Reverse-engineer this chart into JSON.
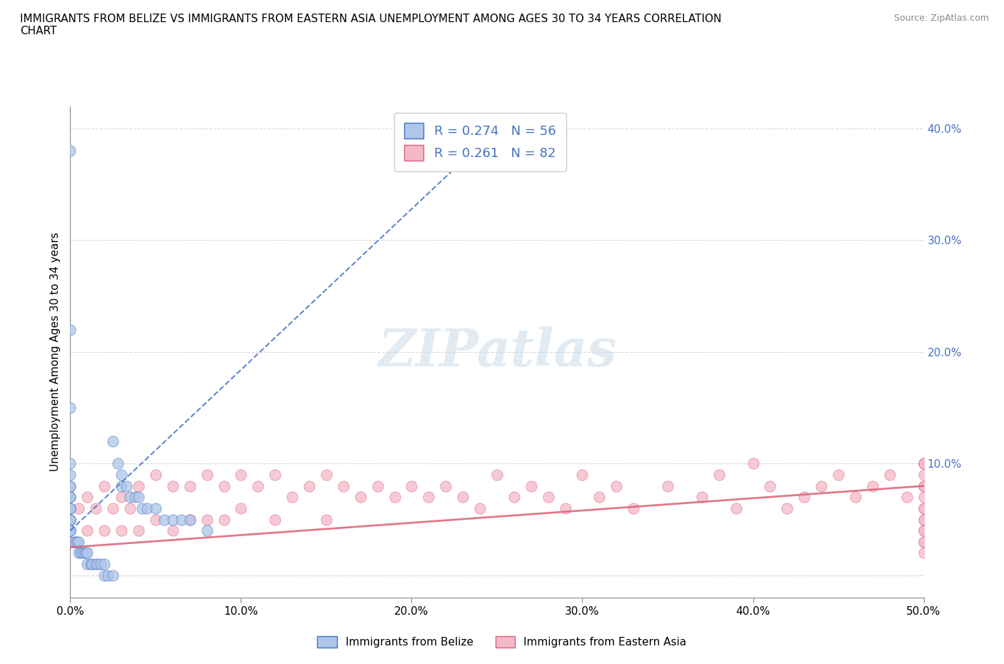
{
  "title": "IMMIGRANTS FROM BELIZE VS IMMIGRANTS FROM EASTERN ASIA UNEMPLOYMENT AMONG AGES 30 TO 34 YEARS CORRELATION\nCHART",
  "source": "Source: ZipAtlas.com",
  "ylabel": "Unemployment Among Ages 30 to 34 years",
  "xlim": [
    0.0,
    0.5
  ],
  "ylim": [
    -0.02,
    0.42
  ],
  "xticks": [
    0.0,
    0.1,
    0.2,
    0.3,
    0.4,
    0.5
  ],
  "xticklabels": [
    "0.0%",
    "10.0%",
    "20.0%",
    "30.0%",
    "40.0%",
    "50.0%"
  ],
  "yticks": [
    0.0,
    0.1,
    0.2,
    0.3,
    0.4
  ],
  "yticklabels": [
    "",
    "10.0%",
    "20.0%",
    "30.0%",
    "40.0%"
  ],
  "belize_R": 0.274,
  "belize_N": 56,
  "eastern_asia_R": 0.261,
  "eastern_asia_N": 82,
  "belize_color": "#aec6e8",
  "eastern_asia_color": "#f5b8c8",
  "belize_line_color": "#4472c4",
  "eastern_asia_line_color": "#d9627a",
  "watermark_text": "ZIPatlas",
  "belize_x": [
    0.0,
    0.0,
    0.0,
    0.0,
    0.0,
    0.0,
    0.0,
    0.0,
    0.0,
    0.0,
    0.0,
    0.0,
    0.0,
    0.0,
    0.0,
    0.0,
    0.0,
    0.0,
    0.0,
    0.0,
    0.002,
    0.003,
    0.004,
    0.005,
    0.005,
    0.006,
    0.007,
    0.008,
    0.009,
    0.01,
    0.01,
    0.012,
    0.013,
    0.015,
    0.016,
    0.018,
    0.02,
    0.02,
    0.022,
    0.025,
    0.025,
    0.028,
    0.03,
    0.03,
    0.033,
    0.035,
    0.038,
    0.04,
    0.042,
    0.045,
    0.05,
    0.055,
    0.06,
    0.065,
    0.07,
    0.08
  ],
  "belize_y": [
    0.38,
    0.22,
    0.15,
    0.1,
    0.09,
    0.08,
    0.08,
    0.07,
    0.07,
    0.06,
    0.06,
    0.06,
    0.05,
    0.05,
    0.05,
    0.05,
    0.04,
    0.04,
    0.04,
    0.04,
    0.03,
    0.03,
    0.03,
    0.03,
    0.02,
    0.02,
    0.02,
    0.02,
    0.02,
    0.02,
    0.01,
    0.01,
    0.01,
    0.01,
    0.01,
    0.01,
    0.01,
    0.0,
    0.0,
    0.0,
    0.12,
    0.1,
    0.09,
    0.08,
    0.08,
    0.07,
    0.07,
    0.07,
    0.06,
    0.06,
    0.06,
    0.05,
    0.05,
    0.05,
    0.05,
    0.04
  ],
  "belize_trendline_x": [
    0.0,
    0.25
  ],
  "belize_trendline_y": [
    0.04,
    0.4
  ],
  "eastern_asia_x": [
    0.0,
    0.0,
    0.0,
    0.005,
    0.01,
    0.01,
    0.015,
    0.02,
    0.02,
    0.025,
    0.03,
    0.03,
    0.035,
    0.04,
    0.04,
    0.05,
    0.05,
    0.06,
    0.06,
    0.07,
    0.07,
    0.08,
    0.08,
    0.09,
    0.09,
    0.1,
    0.1,
    0.11,
    0.12,
    0.12,
    0.13,
    0.14,
    0.15,
    0.15,
    0.16,
    0.17,
    0.18,
    0.19,
    0.2,
    0.21,
    0.22,
    0.23,
    0.24,
    0.25,
    0.26,
    0.27,
    0.28,
    0.29,
    0.3,
    0.31,
    0.32,
    0.33,
    0.35,
    0.37,
    0.38,
    0.39,
    0.4,
    0.41,
    0.42,
    0.43,
    0.44,
    0.45,
    0.46,
    0.47,
    0.48,
    0.49,
    0.5,
    0.5,
    0.5,
    0.5,
    0.5,
    0.5,
    0.5,
    0.5,
    0.5,
    0.5,
    0.5,
    0.5,
    0.5,
    0.5,
    0.5,
    0.5
  ],
  "eastern_asia_y": [
    0.07,
    0.05,
    0.03,
    0.06,
    0.07,
    0.04,
    0.06,
    0.08,
    0.04,
    0.06,
    0.07,
    0.04,
    0.06,
    0.08,
    0.04,
    0.09,
    0.05,
    0.08,
    0.04,
    0.08,
    0.05,
    0.09,
    0.05,
    0.08,
    0.05,
    0.09,
    0.06,
    0.08,
    0.09,
    0.05,
    0.07,
    0.08,
    0.09,
    0.05,
    0.08,
    0.07,
    0.08,
    0.07,
    0.08,
    0.07,
    0.08,
    0.07,
    0.06,
    0.09,
    0.07,
    0.08,
    0.07,
    0.06,
    0.09,
    0.07,
    0.08,
    0.06,
    0.08,
    0.07,
    0.09,
    0.06,
    0.1,
    0.08,
    0.06,
    0.07,
    0.08,
    0.09,
    0.07,
    0.08,
    0.09,
    0.07,
    0.1,
    0.08,
    0.06,
    0.05,
    0.04,
    0.1,
    0.09,
    0.08,
    0.07,
    0.06,
    0.05,
    0.04,
    0.03,
    0.02,
    0.1,
    0.03
  ],
  "eastern_asia_trendline_x": [
    0.0,
    0.5
  ],
  "eastern_asia_trendline_y": [
    0.025,
    0.08
  ]
}
